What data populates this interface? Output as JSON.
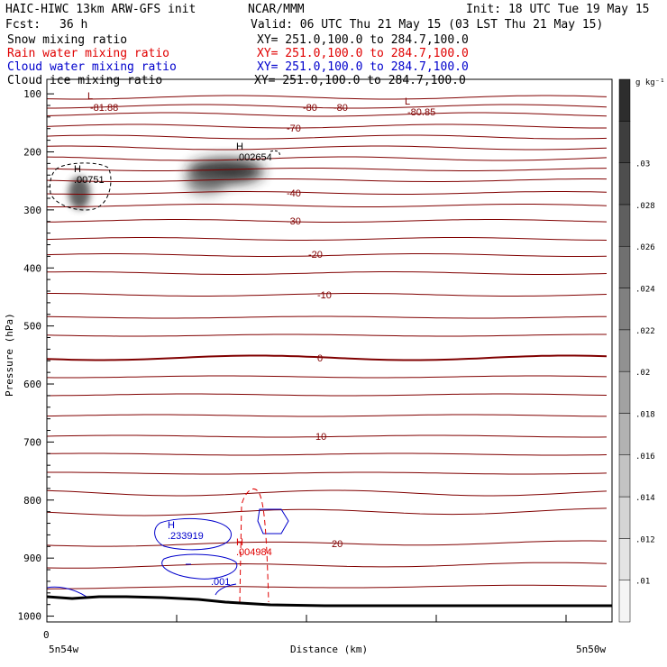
{
  "header": {
    "model_line": "HAIC-HIWC 13km ARW-GFS init",
    "org": "NCAR/MMM",
    "init": "Init: 18 UTC Tue 19 May 15",
    "fcst_label": "Fcst:",
    "fcst_value": "36 h",
    "valid": "Valid: 06 UTC Thu 21 May 15 (03 LST Thu 21 May 15)"
  },
  "legend": [
    {
      "name": "Snow mixing ratio",
      "xy": "XY= 251.0,100.0 to 284.7,100.0",
      "color": "#000000"
    },
    {
      "name": "Rain water mixing ratio",
      "xy": "XY= 251.0,100.0 to 284.7,100.0",
      "color": "#e00000"
    },
    {
      "name": "Cloud water mixing ratio",
      "xy": "XY= 251.0,100.0 to 284.7,100.0",
      "color": "#0000cc"
    },
    {
      "name": "Cloud ice mixing ratio",
      "xy": "XY= 251.0,100.0 to 284.7,100.0",
      "color": "#000000"
    }
  ],
  "chart_data": {
    "type": "contour",
    "xlabel": "Distance (km)",
    "ylabel": "Pressure (hPa)",
    "x_ticks": [
      "0"
    ],
    "x_endpoints": {
      "left": "5n54w",
      "right": "5n50w"
    },
    "y_ticks": [
      100,
      200,
      300,
      400,
      500,
      600,
      700,
      800,
      900,
      1000
    ],
    "ylim": [
      1010,
      75
    ],
    "colorbar": {
      "unit": "g kg⁻¹",
      "ticks": [
        ".01",
        ".012",
        ".014",
        ".016",
        ".018",
        ".02",
        ".022",
        ".024",
        ".026",
        ".028",
        ".03"
      ]
    },
    "temperature_labels": [
      "-80",
      "-80",
      "-70",
      "-40",
      "-30",
      "-20",
      "-10",
      "0",
      "10",
      "20"
    ],
    "extrema": [
      {
        "mark": "L",
        "value": "-81.88",
        "color": "#800000"
      },
      {
        "mark": "L",
        "value": "-80.85",
        "color": "#800000"
      },
      {
        "mark": "H",
        "value": ".002654",
        "color": "#000000"
      },
      {
        "mark": "H",
        "value": ".00751",
        "color": "#000000"
      },
      {
        "mark": "H",
        "value": ".233919",
        "color": "#0000cc"
      },
      {
        "mark": "H",
        "value": ".004984",
        "color": "#e00000"
      }
    ],
    "cloud_water_label": ".001",
    "colors": {
      "isotherm": "#800000",
      "rain": "#e00000",
      "cloud": "#0000cc",
      "terrain": "#000000"
    }
  }
}
